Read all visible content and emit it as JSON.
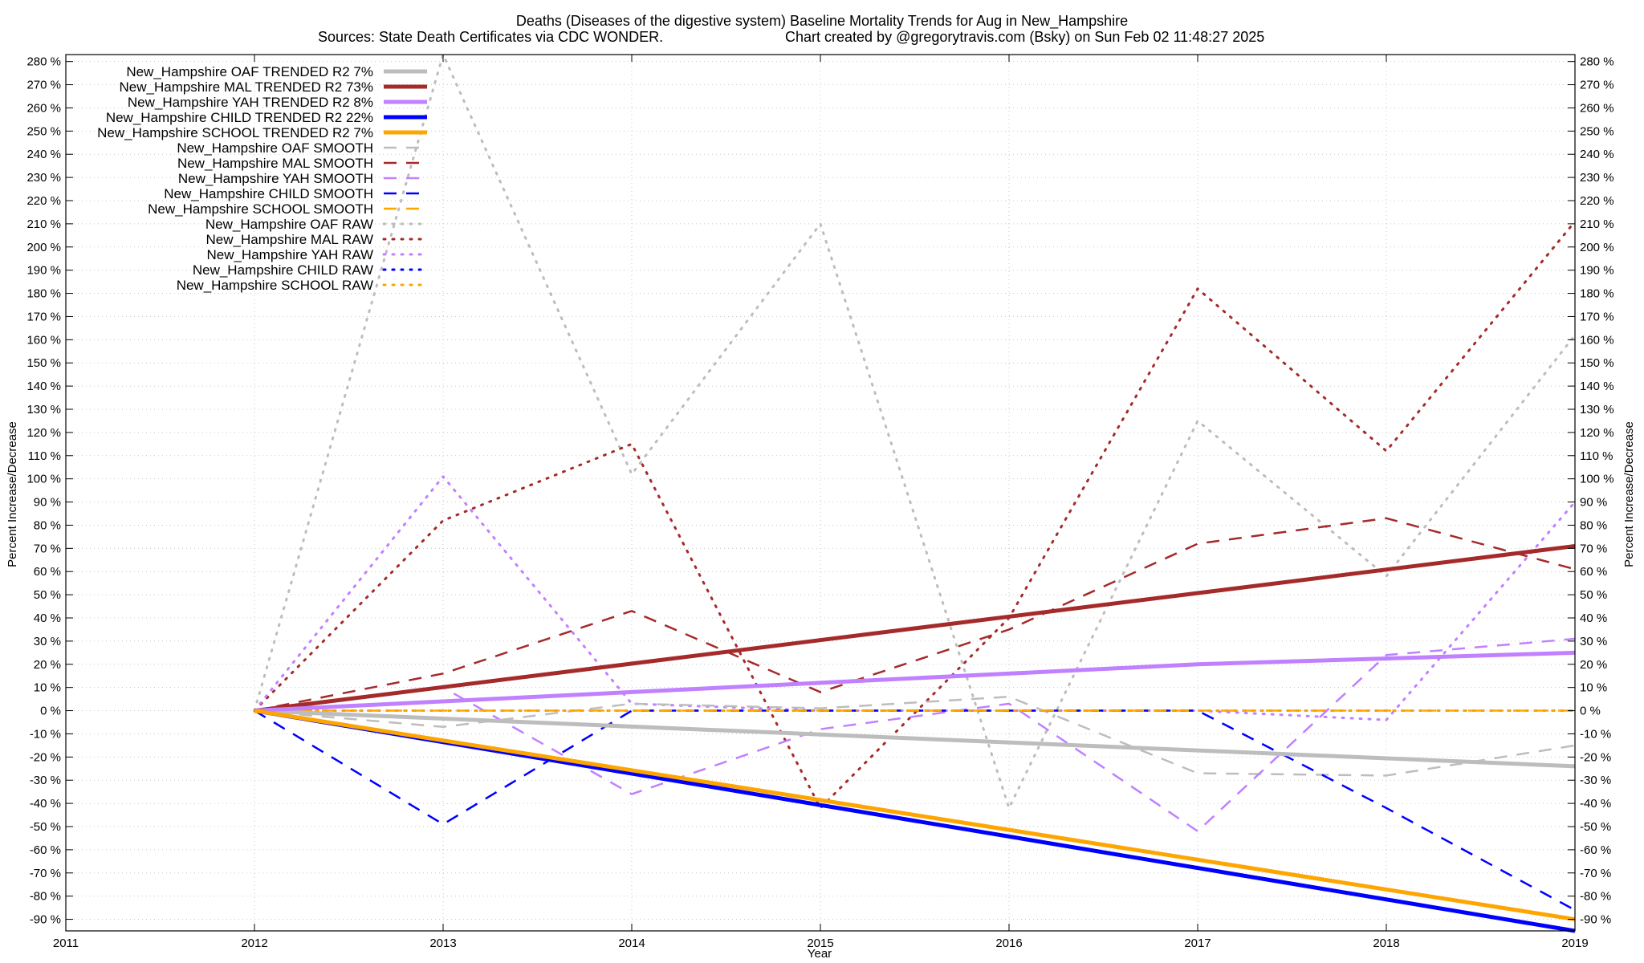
{
  "chart_data": {
    "type": "line",
    "title": "Deaths (Diseases of the digestive system)  Baseline Mortality Trends for Aug in New_Hampshire",
    "subtitle_left": "Sources: State Death Certificates via CDC WONDER.",
    "subtitle_right": "Chart created by @gregorytravis.com (Bsky) on Sun Feb 02 11:48:27 2025",
    "xlabel": "Year",
    "ylabel": "Percent Increase/Decrease",
    "y2label": "Percent Increase/Decrease",
    "xlim": [
      2011,
      2019
    ],
    "ylim": [
      -95,
      283
    ],
    "x_ticks": [
      2011,
      2012,
      2013,
      2014,
      2015,
      2016,
      2017,
      2018,
      2019
    ],
    "y_ticks": [
      -90,
      -80,
      -70,
      -60,
      -50,
      -40,
      -30,
      -20,
      -10,
      0,
      10,
      20,
      30,
      40,
      50,
      60,
      70,
      80,
      90,
      100,
      110,
      120,
      130,
      140,
      150,
      160,
      170,
      180,
      190,
      200,
      210,
      220,
      230,
      240,
      250,
      260,
      270,
      280
    ],
    "y_tick_suffix": " %",
    "grid": true,
    "legend_position": "top-left",
    "series": [
      {
        "name": "New_Hampshire OAF TRENDED R2  7%",
        "style": "solid",
        "color": "#bdbdbd",
        "width": 5,
        "x": [
          2012,
          2019
        ],
        "values": [
          0,
          -24
        ]
      },
      {
        "name": "New_Hampshire MAL TRENDED R2  73%",
        "style": "solid",
        "color": "#a52a2a",
        "width": 5,
        "x": [
          2012,
          2019
        ],
        "values": [
          0,
          71
        ]
      },
      {
        "name": "New_Hampshire YAH TRENDED R2  8%",
        "style": "solid",
        "color": "#c080ff",
        "width": 5,
        "x": [
          2012,
          2017,
          2019
        ],
        "values": [
          0,
          20,
          25
        ]
      },
      {
        "name": "New_Hampshire CHILD TRENDED R2  22%",
        "style": "solid",
        "color": "#0000ff",
        "width": 5,
        "x": [
          2012,
          2019
        ],
        "values": [
          0,
          -95
        ]
      },
      {
        "name": "New_Hampshire SCHOOL TRENDED R2  7%",
        "style": "solid",
        "color": "#ffa500",
        "width": 5,
        "x": [
          2012,
          2019
        ],
        "values": [
          0,
          -90
        ]
      },
      {
        "name": "New_Hampshire OAF SMOOTH",
        "style": "dashed",
        "color": "#bdbdbd",
        "width": 2.5,
        "x": [
          2012,
          2013,
          2014,
          2015,
          2016,
          2017,
          2018,
          2019
        ],
        "values": [
          0,
          -7,
          3,
          1,
          6,
          -27,
          -28,
          -15
        ]
      },
      {
        "name": "New_Hampshire MAL SMOOTH",
        "style": "dashed",
        "color": "#a52a2a",
        "width": 2.5,
        "x": [
          2012,
          2013,
          2014,
          2015,
          2016,
          2017,
          2018,
          2019
        ],
        "values": [
          0,
          16,
          43,
          8,
          35,
          72,
          83,
          61
        ]
      },
      {
        "name": "New_Hampshire YAH SMOOTH",
        "style": "dashed",
        "color": "#c080ff",
        "width": 2.5,
        "x": [
          2012,
          2013,
          2014,
          2015,
          2016,
          2017,
          2018,
          2019
        ],
        "values": [
          0,
          10,
          -36,
          -8,
          3,
          -52,
          24,
          31
        ]
      },
      {
        "name": "New_Hampshire CHILD SMOOTH",
        "style": "dashed",
        "color": "#0000ff",
        "width": 2.5,
        "x": [
          2012,
          2013,
          2014,
          2015,
          2016,
          2017,
          2018,
          2019
        ],
        "values": [
          0,
          -49,
          0,
          0,
          0,
          0,
          -42,
          -86
        ]
      },
      {
        "name": "New_Hampshire SCHOOL SMOOTH",
        "style": "dashed",
        "color": "#ffa500",
        "width": 2.5,
        "x": [
          2012,
          2013,
          2014,
          2015,
          2016,
          2017,
          2018,
          2019
        ],
        "values": [
          0,
          0,
          0,
          0,
          0,
          0,
          0,
          0
        ]
      },
      {
        "name": "New_Hampshire OAF RAW",
        "style": "dotted",
        "color": "#bdbdbd",
        "width": 3,
        "x": [
          2012,
          2013,
          2014,
          2015,
          2016,
          2017,
          2018,
          2019
        ],
        "values": [
          0,
          283,
          102,
          210,
          -42,
          125,
          58,
          162
        ]
      },
      {
        "name": "New_Hampshire MAL RAW",
        "style": "dotted",
        "color": "#a52a2a",
        "width": 3,
        "x": [
          2012,
          2013,
          2014,
          2015,
          2016,
          2017,
          2018,
          2019
        ],
        "values": [
          0,
          82,
          115,
          -42,
          40,
          182,
          112,
          211
        ]
      },
      {
        "name": "New_Hampshire YAH RAW",
        "style": "dotted",
        "color": "#c080ff",
        "width": 3,
        "x": [
          2012,
          2013,
          2014,
          2015,
          2016,
          2017,
          2018,
          2019
        ],
        "values": [
          0,
          101,
          3,
          0,
          0,
          0,
          -4,
          90
        ]
      },
      {
        "name": "New_Hampshire CHILD RAW",
        "style": "dotted",
        "color": "#0000ff",
        "width": 3,
        "x": [
          2012,
          2013,
          2014,
          2015,
          2016,
          2017,
          2018,
          2019
        ],
        "values": [
          0,
          0,
          0,
          0,
          0,
          0,
          0,
          0
        ]
      },
      {
        "name": "New_Hampshire SCHOOL RAW",
        "style": "dotted",
        "color": "#ffa500",
        "width": 3,
        "x": [
          2012,
          2013,
          2014,
          2015,
          2016,
          2017,
          2018,
          2019
        ],
        "values": [
          0,
          0,
          0,
          0,
          0,
          0,
          0,
          0
        ]
      }
    ]
  }
}
